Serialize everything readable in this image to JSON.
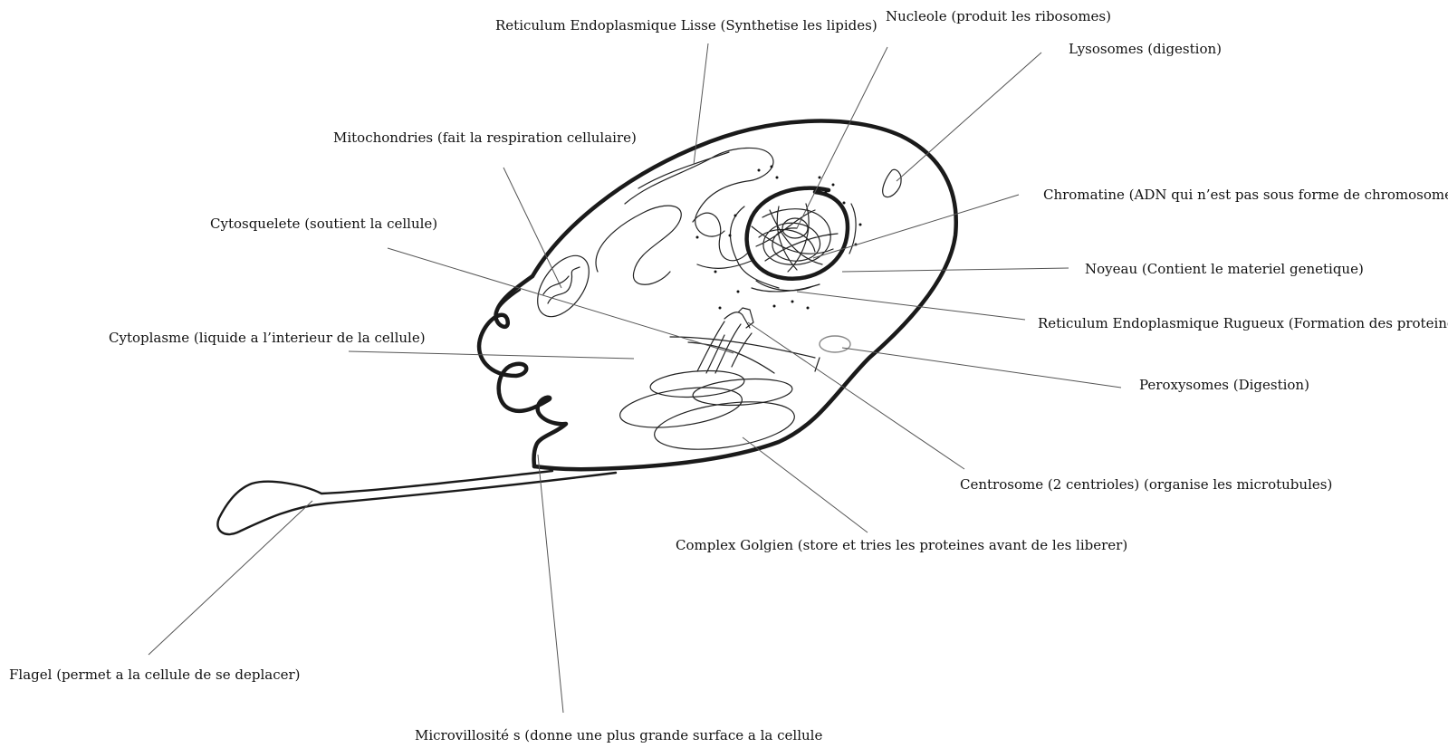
{
  "labels": {
    "rel": "Reticulum Endoplasmique Lisse (Synthetise les lipides)",
    "nucleole": "Nucleole (produit les ribosomes)",
    "lysosomes": "Lysosomes (digestion)",
    "mitochondries": "Mitochondries (fait la respiration cellulaire)",
    "chromatine": "Chromatine (ADN qui n’est pas sous forme de chromosomes)",
    "cytosquelete": "Cytosquelete (soutient la cellule)",
    "noyeau": "Noyeau (Contient le materiel genetique)",
    "rer": "Reticulum Endoplasmique Rugueux (Formation des proteines)",
    "cytoplasme": "Cytoplasme (liquide a l’interieur de la cellule)",
    "peroxysomes": "Peroxysomes (Digestion)",
    "centrosome": "Centrosome (2 centrioles) (organise les microtubules)",
    "golgi": "Complex Golgien (store et tries les proteines avant de les liberer)",
    "flagel": "Flagel (permet a la cellule de se deplacer)",
    "microvillosites": "Microvillosité s (donne une plus grande surface a la cellule"
  }
}
